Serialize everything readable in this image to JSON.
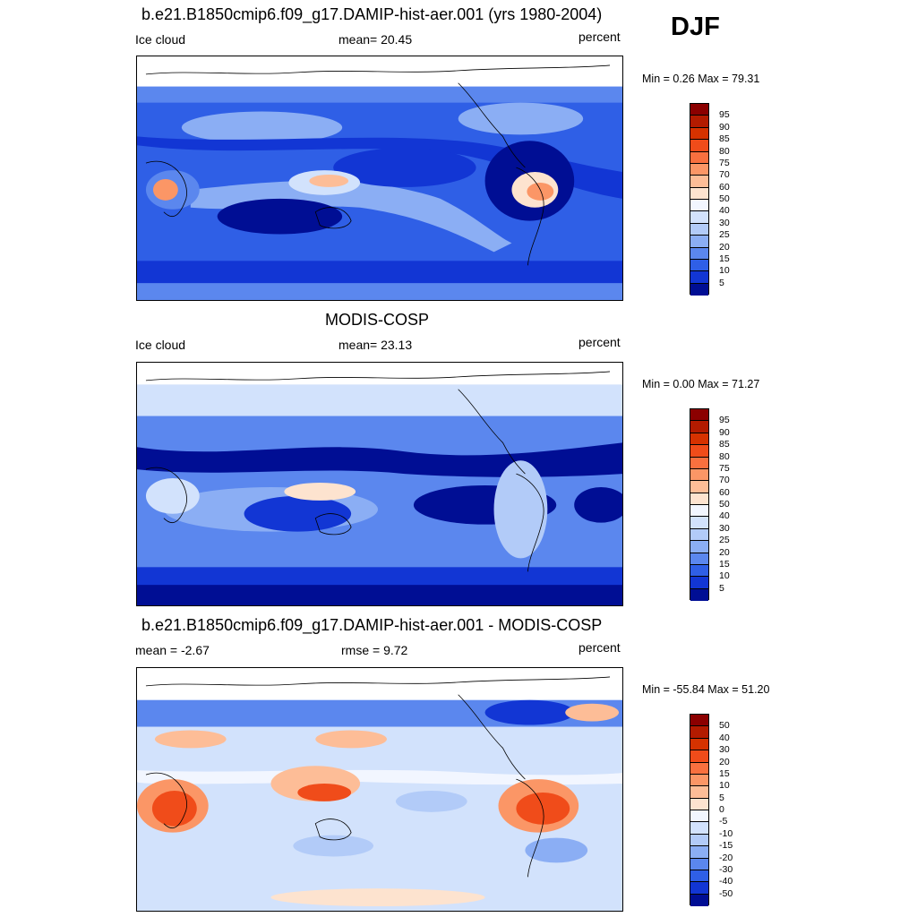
{
  "season": "DJF",
  "panels": [
    {
      "title": "b.e21.B1850cmip6.f09_g17.DAMIP-hist-aer.001 (yrs 1980-2004)",
      "left_label": "Ice cloud",
      "center_label": "mean=  20.45",
      "units": "percent",
      "minmax": "Min =   0.26 Max =  79.31"
    },
    {
      "title": "MODIS-COSP",
      "left_label": "Ice cloud",
      "center_label": "mean=  23.13",
      "units": "percent",
      "minmax": "Min =   0.00 Max =  71.27"
    },
    {
      "title": "b.e21.B1850cmip6.f09_g17.DAMIP-hist-aer.001 - MODIS-COSP",
      "left_label": "mean =  -2.67",
      "center_label": "rmse =   9.72",
      "units": "percent",
      "minmax": "Min = -55.84 Max =  51.20"
    }
  ],
  "colorbar_abs": {
    "labels": [
      "95",
      "90",
      "85",
      "80",
      "75",
      "70",
      "60",
      "50",
      "40",
      "30",
      "25",
      "20",
      "15",
      "10",
      "5"
    ],
    "colors": [
      "#8b0000",
      "#b31b00",
      "#d63200",
      "#f04c1a",
      "#f8703f",
      "#fb9666",
      "#fdbd97",
      "#fde3cf",
      "#f2f6ff",
      "#d2e2fc",
      "#b2cbf8",
      "#8baef4",
      "#5b87ee",
      "#2f5fe6",
      "#1236d4",
      "#000e94"
    ]
  },
  "colorbar_diff": {
    "labels": [
      "50",
      "40",
      "30",
      "20",
      "15",
      "10",
      "5",
      "0",
      "-5",
      "-10",
      "-15",
      "-20",
      "-30",
      "-40",
      "-50"
    ],
    "colors": [
      "#8b0000",
      "#b31b00",
      "#d63200",
      "#f04c1a",
      "#f8703f",
      "#fb9666",
      "#fdbd97",
      "#fde3cf",
      "#f2f6ff",
      "#d2e2fc",
      "#b2cbf8",
      "#8baef4",
      "#5b87ee",
      "#2f5fe6",
      "#1236d4",
      "#000e94"
    ]
  }
}
